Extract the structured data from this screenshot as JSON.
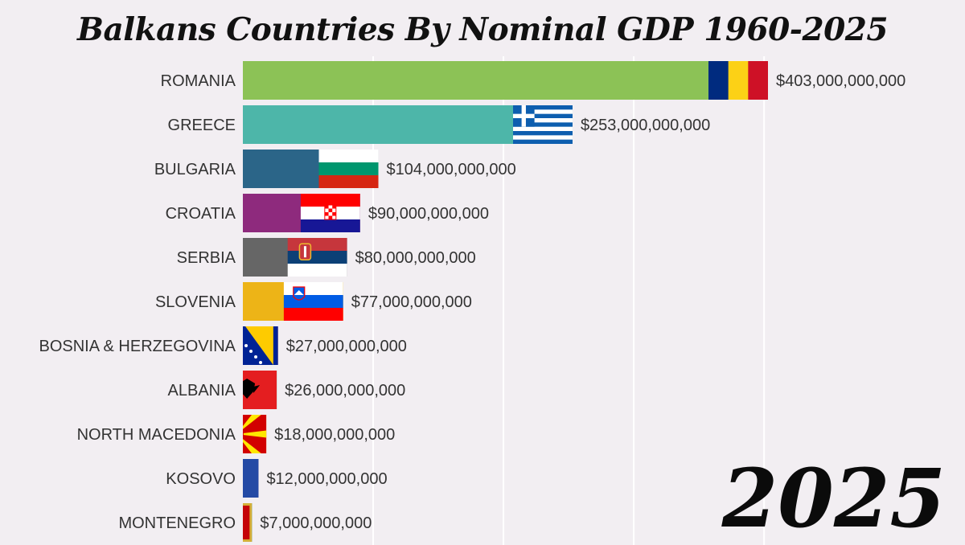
{
  "chart_data": {
    "type": "bar",
    "orientation": "horizontal",
    "title": "Balkans Countries By Nominal GDP 1960-2025",
    "year": "2025",
    "categories": [
      "ROMANIA",
      "GREECE",
      "BULGARIA",
      "CROATIA",
      "SERBIA",
      "SLOVENIA",
      "BOSNIA & HERZEGOVINA",
      "ALBANIA",
      "NORTH MACEDONIA",
      "KOSOVO",
      "MONTENEGRO"
    ],
    "values": [
      403000000000,
      253000000000,
      104000000000,
      90000000000,
      80000000000,
      77000000000,
      27000000000,
      26000000000,
      18000000000,
      12000000000,
      7000000000
    ],
    "value_labels": [
      "$403,000,000,000",
      "$253,000,000,000",
      "$104,000,000,000",
      "$90,000,000,000",
      "$80,000,000,000",
      "$77,000,000,000",
      "$27,000,000,000",
      "$26,000,000,000",
      "$18,000,000,000",
      "$12,000,000,000",
      "$7,000,000,000"
    ],
    "colors": [
      "#8cc256",
      "#4db6a9",
      "#2b6588",
      "#8e2a7d",
      "#666666",
      "#edb417",
      "#cc4e4d",
      "#2e9a62",
      "#ec7b2e",
      "#7a3a9d",
      "#2c9a8e"
    ],
    "flags": [
      "ROMANIA",
      "GREECE",
      "BULGARIA",
      "CROATIA",
      "SERBIA",
      "SLOVENIA",
      "BOSNIA & HERZEGOVINA",
      "ALBANIA",
      "NORTH MACEDONIA",
      "KOSOVO",
      "MONTENEGRO"
    ],
    "xlim": [
      0,
      430000000000
    ],
    "gridlines": [
      100000000000,
      200000000000,
      300000000000,
      400000000000
    ],
    "grid": true,
    "legend": "none"
  }
}
